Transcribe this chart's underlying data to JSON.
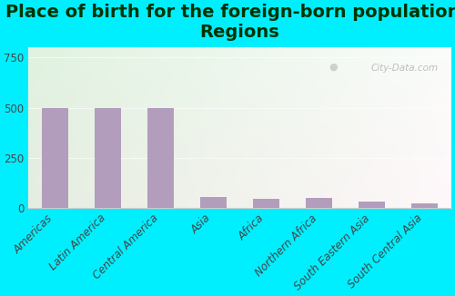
{
  "title": "Place of birth for the foreign-born population -\nRegions",
  "categories": [
    "Americas",
    "Latin America",
    "Central America",
    "Asia",
    "Africa",
    "Northern Africa",
    "South Eastern Asia",
    "South Central Asia"
  ],
  "values": [
    497,
    497,
    500,
    52,
    45,
    50,
    32,
    22
  ],
  "bar_color": "#b39dbd",
  "background_outer": "#00efff",
  "ylim": [
    0,
    800
  ],
  "yticks": [
    0,
    250,
    500,
    750
  ],
  "title_fontsize": 14,
  "title_color": "#003300",
  "tick_fontsize": 8.5,
  "tick_color": "#444444",
  "watermark": "City-Data.com"
}
